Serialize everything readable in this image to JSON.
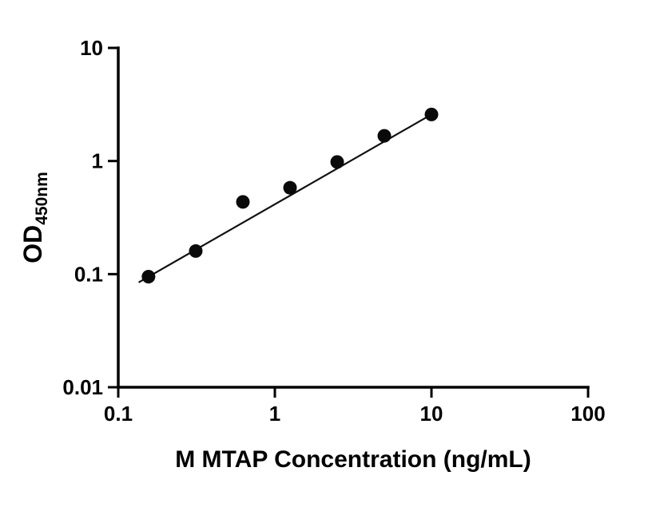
{
  "page": {
    "background": "#ffffff"
  },
  "chart_data": {
    "type": "scatter",
    "title": "",
    "xlabel": "M MTAP Concentration (ng/mL)",
    "ylabel": "OD",
    "ylabel_subscript": "450nm",
    "xscale": "log",
    "yscale": "log",
    "xlim": [
      0.1,
      100
    ],
    "ylim": [
      0.01,
      10
    ],
    "xticks": [
      0.1,
      1,
      10,
      100
    ],
    "xtick_labels": [
      "0.1",
      "1",
      "10",
      "100"
    ],
    "yticks": [
      0.01,
      0.1,
      1,
      10
    ],
    "ytick_labels": [
      "0.01",
      "0.1",
      "1",
      "10"
    ],
    "grid": "off",
    "legend": "none",
    "points": {
      "x": [
        0.156,
        0.3125,
        0.625,
        1.25,
        2.5,
        5,
        10
      ],
      "y": [
        0.095,
        0.16,
        0.435,
        0.58,
        0.98,
        1.67,
        2.58
      ]
    },
    "fit_line": {
      "x": [
        0.135,
        10
      ],
      "y": [
        0.0845,
        2.58
      ]
    },
    "colors": {
      "points": "#0a0a0a",
      "line": "#111111",
      "axis": "#000000",
      "text": "#000000"
    }
  }
}
